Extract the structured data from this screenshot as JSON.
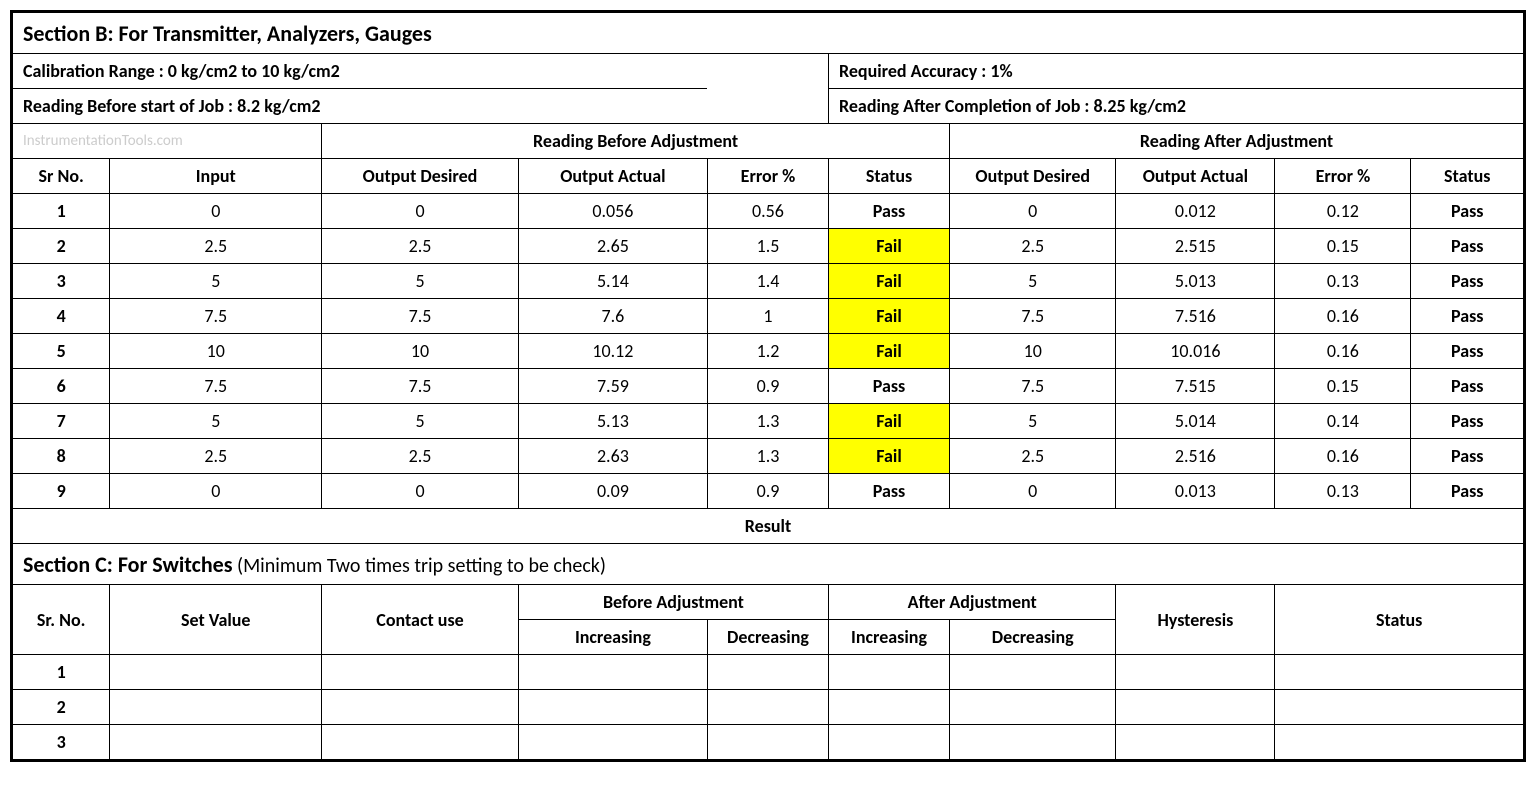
{
  "sectionB": {
    "title": "Section B:  For Transmitter, Analyzers, Gauges",
    "calibrationRange": "Calibration Range : 0 kg/cm2 to 10 kg/cm2",
    "requiredAccuracy": "Required Accuracy : 1%",
    "readingBefore": "Reading Before start of Job : 8.2 kg/cm2",
    "readingAfter": "Reading After Completion of Job : 8.25 kg/cm2",
    "watermark": "InstrumentationTools.com",
    "headerBefore": "Reading Before Adjustment",
    "headerAfter": "Reading After Adjustment",
    "columns": {
      "srNo": "Sr No.",
      "input": "Input",
      "outputDesired": "Output Desired",
      "outputActual": "Output Actual",
      "errorPct": "Error %",
      "status": "Status"
    },
    "rows": [
      {
        "sr": "1",
        "input": "0",
        "bDesired": "0",
        "bActual": "0.056",
        "bError": "0.56",
        "bStatus": "Pass",
        "bFail": false,
        "aDesired": "0",
        "aActual": "0.012",
        "aError": "0.12",
        "aStatus": "Pass"
      },
      {
        "sr": "2",
        "input": "2.5",
        "bDesired": "2.5",
        "bActual": "2.65",
        "bError": "1.5",
        "bStatus": "Fail",
        "bFail": true,
        "aDesired": "2.5",
        "aActual": "2.515",
        "aError": "0.15",
        "aStatus": "Pass"
      },
      {
        "sr": "3",
        "input": "5",
        "bDesired": "5",
        "bActual": "5.14",
        "bError": "1.4",
        "bStatus": "Fail",
        "bFail": true,
        "aDesired": "5",
        "aActual": "5.013",
        "aError": "0.13",
        "aStatus": "Pass"
      },
      {
        "sr": "4",
        "input": "7.5",
        "bDesired": "7.5",
        "bActual": "7.6",
        "bError": "1",
        "bStatus": "Fail",
        "bFail": true,
        "aDesired": "7.5",
        "aActual": "7.516",
        "aError": "0.16",
        "aStatus": "Pass"
      },
      {
        "sr": "5",
        "input": "10",
        "bDesired": "10",
        "bActual": "10.12",
        "bError": "1.2",
        "bStatus": "Fail",
        "bFail": true,
        "aDesired": "10",
        "aActual": "10.016",
        "aError": "0.16",
        "aStatus": "Pass"
      },
      {
        "sr": "6",
        "input": "7.5",
        "bDesired": "7.5",
        "bActual": "7.59",
        "bError": "0.9",
        "bStatus": "Pass",
        "bFail": false,
        "aDesired": "7.5",
        "aActual": "7.515",
        "aError": "0.15",
        "aStatus": "Pass"
      },
      {
        "sr": "7",
        "input": "5",
        "bDesired": "5",
        "bActual": "5.13",
        "bError": "1.3",
        "bStatus": "Fail",
        "bFail": true,
        "aDesired": "5",
        "aActual": "5.014",
        "aError": "0.14",
        "aStatus": "Pass"
      },
      {
        "sr": "8",
        "input": "2.5",
        "bDesired": "2.5",
        "bActual": "2.63",
        "bError": "1.3",
        "bStatus": "Fail",
        "bFail": true,
        "aDesired": "2.5",
        "aActual": "2.516",
        "aError": "0.16",
        "aStatus": "Pass"
      },
      {
        "sr": "9",
        "input": "0",
        "bDesired": "0",
        "bActual": "0.09",
        "bError": "0.9",
        "bStatus": "Pass",
        "bFail": false,
        "aDesired": "0",
        "aActual": "0.013",
        "aError": "0.13",
        "aStatus": "Pass"
      }
    ],
    "resultLabel": "Result"
  },
  "sectionC": {
    "title": "Section C:  For Switches",
    "note": "  (Minimum Two times trip setting to be check)",
    "columns": {
      "srNo": "Sr. No.",
      "setValue": "Set Value",
      "contactUse": "Contact use",
      "beforeAdj": "Before Adjustment",
      "afterAdj": "After Adjustment",
      "increasing": "Increasing",
      "decreasing": "Decreasing",
      "hysteresis": "Hysteresis",
      "status": "Status"
    },
    "rows": [
      {
        "sr": "1"
      },
      {
        "sr": "2"
      },
      {
        "sr": "3"
      }
    ]
  },
  "styling": {
    "failBg": "#ffff00",
    "borderColor": "#000000",
    "bgColor": "#ffffff",
    "watermarkColor": "#cccccc",
    "fontSize": 18,
    "titleFontSize": 22
  }
}
